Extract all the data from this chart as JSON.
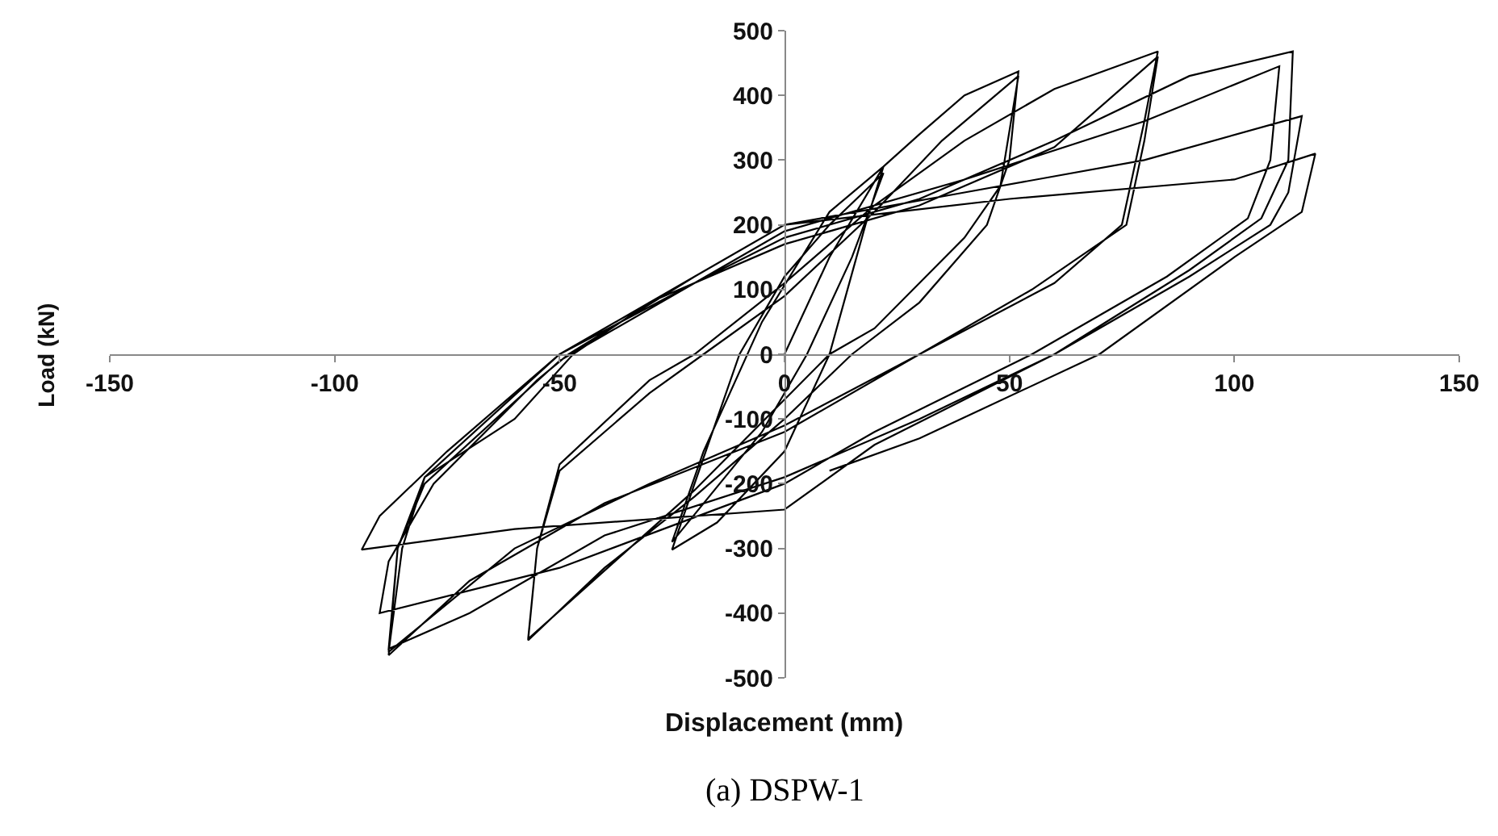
{
  "chart_data": {
    "type": "line",
    "xlabel": "Displacement (mm)",
    "ylabel": "Load (kN)",
    "annotations": [
      "(a) DSPW-1"
    ],
    "xlim": [
      -150,
      150
    ],
    "xticks": [
      -150,
      -100,
      -50,
      0,
      50,
      100,
      150
    ],
    "ylim": [
      -500,
      500
    ],
    "yticks": [
      -500,
      -400,
      -300,
      -200,
      -100,
      0,
      100,
      200,
      300,
      400,
      500
    ],
    "grid": false,
    "marker": "none",
    "line_style": "solid",
    "series": [
      {
        "color": "#000000",
        "x": [
          0,
          10,
          22,
          18,
          10,
          0,
          -15,
          -25,
          -20,
          -10,
          0,
          10,
          22,
          15,
          5,
          -5,
          -25,
          -18,
          -5,
          10,
          22,
          30,
          40,
          52,
          50,
          45,
          30,
          15,
          0,
          -20,
          -40,
          -57,
          -55,
          -50,
          -30,
          -18,
          0,
          20,
          35,
          52,
          48,
          40,
          20,
          10,
          -20,
          -57,
          -55,
          -50,
          -30,
          -20,
          0,
          20,
          40,
          60,
          83,
          80,
          75,
          60,
          30,
          0,
          -30,
          -60,
          -88,
          -85,
          -80,
          -60,
          -47,
          -30,
          0,
          30,
          60,
          83,
          80,
          76,
          55,
          30,
          0,
          -40,
          -70,
          -88,
          -86,
          -80,
          -50,
          -20,
          0,
          30,
          60,
          90,
          113,
          112,
          106,
          90,
          60,
          30,
          0,
          -40,
          -70,
          -88,
          -86,
          -80,
          -50,
          -20,
          0,
          40,
          80,
          110,
          108,
          103,
          85,
          55,
          20,
          0,
          -50,
          -90,
          -88,
          -78,
          -55,
          -48,
          -20,
          0,
          40,
          80,
          115,
          112,
          108,
          90,
          60,
          20,
          0,
          -60,
          -94,
          -90,
          -75,
          -50,
          -20,
          0,
          50,
          100,
          118,
          115,
          100,
          70,
          30,
          10
        ],
        "values": [
          0,
          150,
          290,
          200,
          0,
          -150,
          -260,
          -302,
          -200,
          0,
          120,
          200,
          280,
          150,
          0,
          -120,
          -290,
          -150,
          50,
          220,
          290,
          340,
          400,
          437,
          300,
          200,
          80,
          0,
          -100,
          -220,
          -330,
          -442,
          -300,
          -180,
          -60,
          0,
          90,
          220,
          330,
          430,
          260,
          180,
          40,
          0,
          -210,
          -440,
          -300,
          -170,
          -40,
          0,
          110,
          230,
          330,
          410,
          468,
          360,
          200,
          110,
          0,
          -110,
          -200,
          -300,
          -460,
          -300,
          -190,
          -100,
          0,
          80,
          170,
          230,
          320,
          460,
          330,
          200,
          100,
          0,
          -120,
          -230,
          -350,
          -465,
          -300,
          -190,
          0,
          110,
          180,
          240,
          330,
          430,
          468,
          300,
          210,
          130,
          0,
          -100,
          -190,
          -280,
          -400,
          -455,
          -300,
          -200,
          -10,
          110,
          190,
          270,
          360,
          445,
          300,
          210,
          120,
          0,
          -120,
          -200,
          -330,
          -400,
          -320,
          -200,
          -40,
          0,
          120,
          200,
          250,
          300,
          368,
          250,
          200,
          120,
          0,
          -140,
          -240,
          -270,
          -302,
          -250,
          -150,
          0,
          120,
          200,
          240,
          270,
          310,
          220,
          150,
          0,
          -130,
          -180
        ]
      }
    ]
  }
}
